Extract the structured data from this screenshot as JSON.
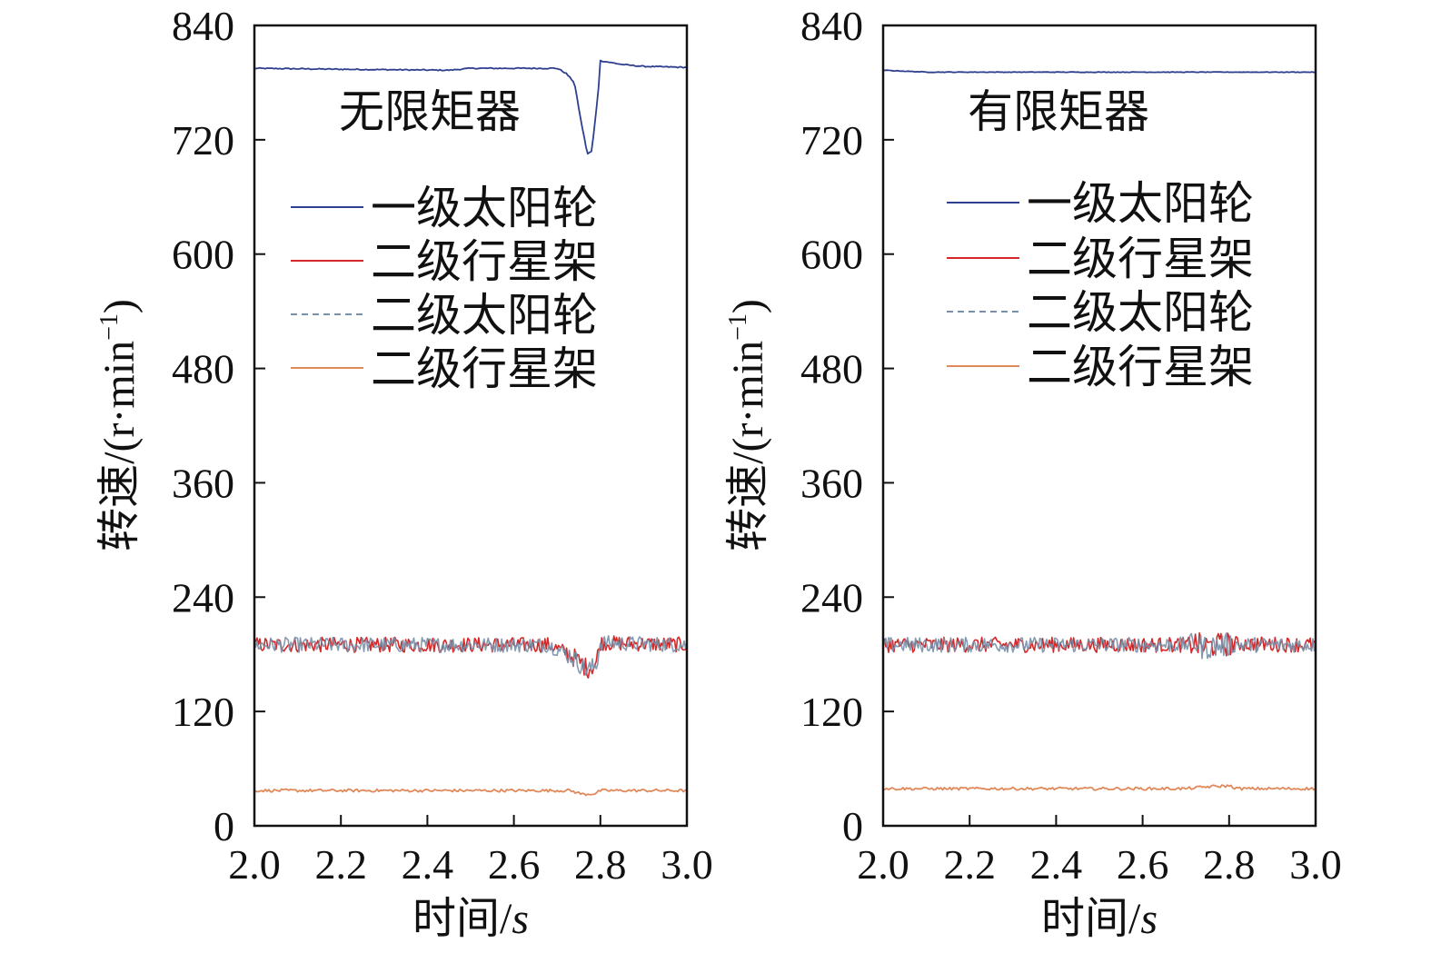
{
  "chart_data": [
    {
      "type": "line",
      "title": "无限矩器",
      "xlabel": "时间/",
      "xlabel_unit": "s",
      "ylabel": "转速/(r·min",
      "ylabel_sup": "−1",
      "ylabel_close": ")",
      "xlim": [
        2.0,
        3.0
      ],
      "ylim": [
        0,
        840
      ],
      "xticks": [
        "2.0",
        "2.2",
        "2.4",
        "2.6",
        "2.8",
        "3.0"
      ],
      "yticks": [
        "0",
        "120",
        "240",
        "360",
        "480",
        "600",
        "720",
        "840"
      ],
      "legend_position": "upper-center",
      "series": [
        {
          "name": "一级太阳轮",
          "color": "#2e3f8f",
          "dash": false,
          "noise": 0.6,
          "x": [
            2.0,
            2.2,
            2.45,
            2.5,
            2.7,
            2.72,
            2.74,
            2.755,
            2.77,
            2.78,
            2.795,
            2.8,
            2.85,
            2.9,
            3.0
          ],
          "y": [
            795,
            794,
            793,
            795,
            795,
            790,
            780,
            740,
            705,
            708,
            770,
            803,
            799,
            797,
            796
          ]
        },
        {
          "name": "二级行星架",
          "color": "#d62728",
          "dash": false,
          "noise": 8,
          "x": [
            2.0,
            2.68,
            2.73,
            2.77,
            2.79,
            2.8,
            3.0
          ],
          "y": [
            190,
            190,
            180,
            165,
            170,
            192,
            190
          ]
        },
        {
          "name": "二级太阳轮",
          "color": "#7890a8",
          "dash": true,
          "noise": 8,
          "x": [
            2.0,
            2.68,
            2.73,
            2.77,
            2.79,
            2.8,
            3.0
          ],
          "y": [
            190,
            190,
            179,
            163,
            168,
            192,
            190
          ]
        },
        {
          "name": "二级行星架",
          "color": "#e0895a",
          "dash": false,
          "noise": 1.5,
          "x": [
            2.0,
            2.73,
            2.76,
            2.79,
            2.8,
            3.0
          ],
          "y": [
            37,
            37,
            33,
            34,
            37,
            37
          ]
        }
      ]
    },
    {
      "type": "line",
      "title": "有限矩器",
      "xlabel": "时间/",
      "xlabel_unit": "s",
      "ylabel": "转速/(r·min",
      "ylabel_sup": "−1",
      "ylabel_close": ")",
      "xlim": [
        2.0,
        3.0
      ],
      "ylim": [
        0,
        840
      ],
      "xticks": [
        "2.0",
        "2.2",
        "2.4",
        "2.6",
        "2.8",
        "3.0"
      ],
      "yticks": [
        "0",
        "120",
        "240",
        "360",
        "480",
        "600",
        "720",
        "840"
      ],
      "legend_position": "upper-center",
      "series": [
        {
          "name": "一级太阳轮",
          "color": "#2e3f8f",
          "dash": false,
          "noise": 0.3,
          "x": [
            2.0,
            2.1,
            3.0
          ],
          "y": [
            793,
            791,
            791
          ]
        },
        {
          "name": "二级行星架",
          "color": "#d62728",
          "dash": false,
          "noise": 8,
          "x": [
            2.0,
            2.7,
            2.72,
            2.74,
            2.8,
            3.0
          ],
          "y": [
            190,
            190,
            192,
            188,
            191,
            190
          ]
        },
        {
          "name": "二级太阳轮",
          "color": "#7890a8",
          "dash": true,
          "noise": 8,
          "x": [
            2.0,
            2.7,
            2.72,
            2.74,
            2.8,
            3.0
          ],
          "y": [
            190,
            190,
            193,
            187,
            190,
            190
          ]
        },
        {
          "name": "二级行星架",
          "color": "#e0895a",
          "dash": false,
          "noise": 1.5,
          "x": [
            2.0,
            2.7,
            2.75,
            2.8,
            2.82,
            3.0
          ],
          "y": [
            39,
            39,
            41,
            42,
            39,
            39
          ]
        }
      ]
    }
  ]
}
